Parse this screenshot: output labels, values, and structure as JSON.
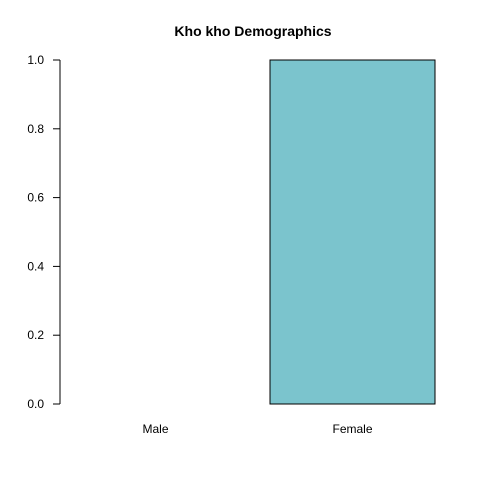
{
  "chart_data": {
    "type": "bar",
    "title": "Kho kho Demographics",
    "categories": [
      "Male",
      "Female"
    ],
    "values": [
      0.0,
      1.0
    ],
    "ylim": [
      0,
      1
    ],
    "yticks": [
      0.0,
      0.2,
      0.4,
      0.6,
      0.8,
      1.0
    ],
    "ytick_labels": [
      "0.0",
      "0.2",
      "0.4",
      "0.6",
      "0.8",
      "1.0"
    ],
    "xlabel": "",
    "ylabel": "",
    "grid": false,
    "colors": {
      "bar_fill": "#7bc4cd",
      "bar_stroke": "#000000",
      "axis": "#000000"
    }
  }
}
